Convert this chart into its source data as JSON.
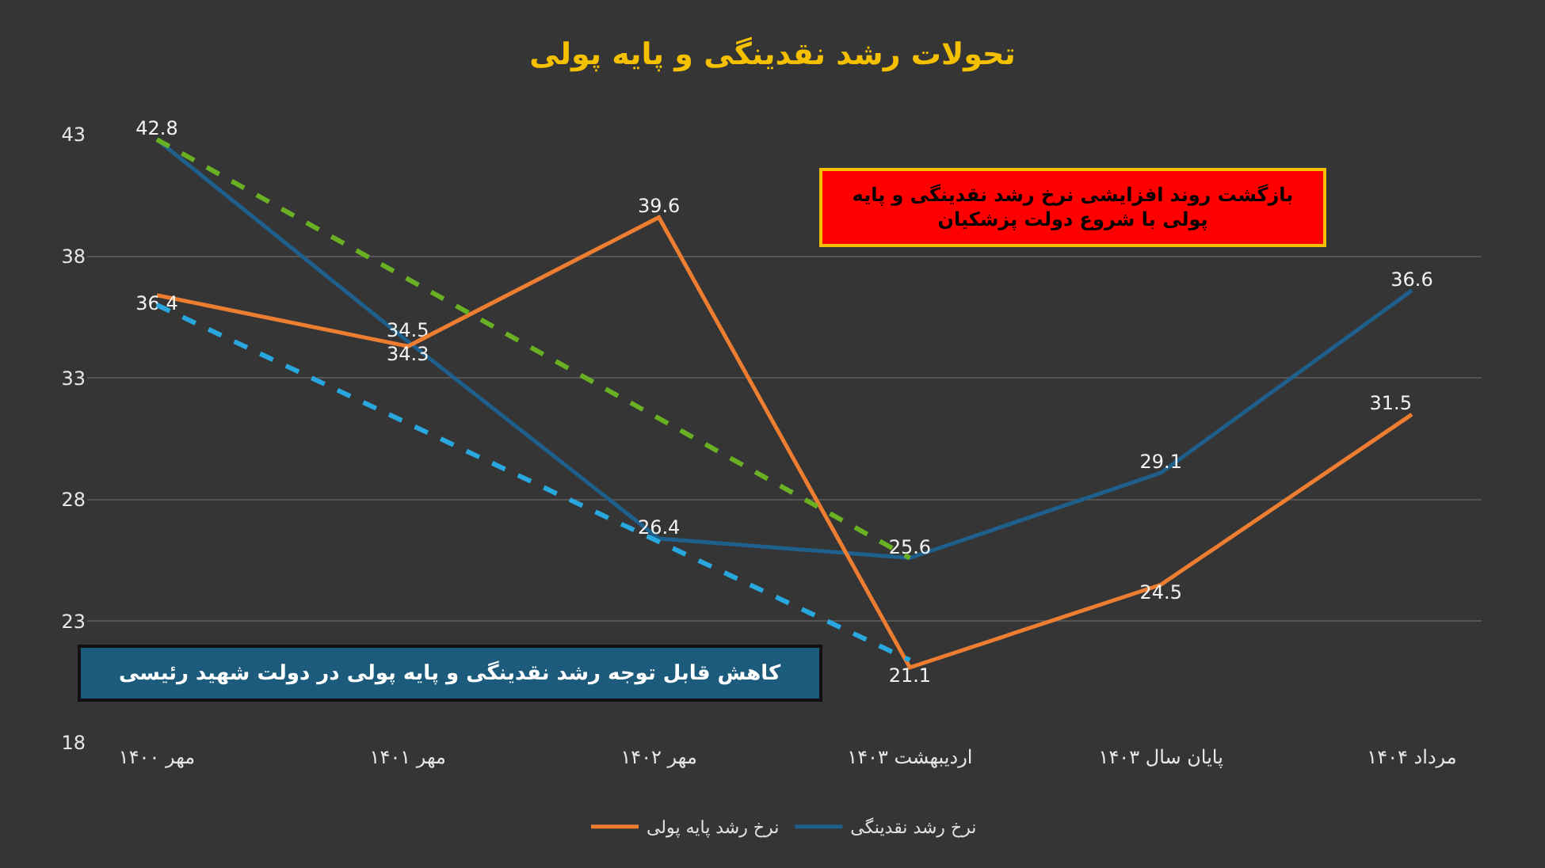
{
  "chart_data": {
    "type": "line",
    "title": "تحولات رشد نقدینگی و پایه پولی",
    "categories": [
      "مهر ۱۴۰۰",
      "مهر ۱۴۰۱",
      "مهر ۱۴۰۲",
      "اردیبهشت ۱۴۰۳",
      "پایان سال ۱۴۰۳",
      "مرداد ۱۴۰۴"
    ],
    "series": [
      {
        "name": "نرخ رشد نقدینگی",
        "color": "#1f5f8b",
        "values": [
          42.8,
          34.5,
          26.4,
          25.6,
          29.1,
          36.6
        ],
        "value_labels": [
          "42.8",
          "34.5",
          "26.4",
          "25.6",
          "29.1",
          "36.6"
        ]
      },
      {
        "name": "نرخ رشد پایه پولی",
        "color": "#ed7d31",
        "values": [
          36.4,
          34.3,
          39.6,
          21.1,
          24.5,
          31.5
        ],
        "value_labels": [
          "36.4",
          "34.3",
          "39.6",
          "21.1",
          "24.5",
          "31.5"
        ]
      },
      {
        "type": "line",
        "color": "#6ab023",
        "line_style": "dashed",
        "x": [
          "مهر ۱۴۰۰",
          "اردیبهشت ۱۴۰۳"
        ],
        "values": [
          42.8,
          25.6
        ]
      },
      {
        "type": "line",
        "color": "#29a8e0",
        "line_style": "dashed",
        "x": [
          "مهر ۱۴۰۰",
          "اردیبهشت ۱۴۰۳"
        ],
        "values": [
          36.0,
          21.4
        ]
      }
    ],
    "annotations": [
      "بازگشت روند افزایشی نرخ رشد نقدینگی و پایه\nپولی با شروع دولت پزشکیان",
      "کاهش قابل توجه رشد نقدینگی و پایه پولی در دولت شهید رئیسی"
    ],
    "ylim": [
      18,
      43
    ],
    "yticks": [
      18,
      23,
      28,
      33,
      38,
      43
    ],
    "grid": "y",
    "legend": "bottom",
    "line_style": "solid",
    "marker": "none"
  }
}
